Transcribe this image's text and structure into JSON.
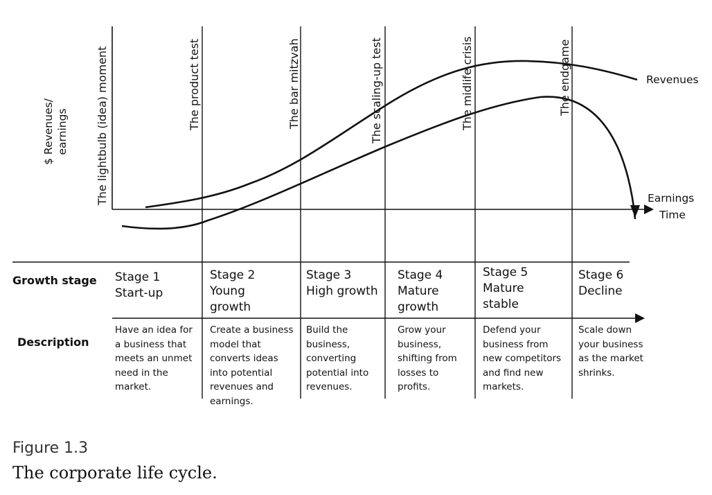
{
  "figure": {
    "number": "Figure 1.3",
    "title": "The corporate life cycle."
  },
  "chart": {
    "y_axis_label": "$ Revenues/\nearnings",
    "series_labels": {
      "revenues": "Revenues",
      "earnings": "Earnings",
      "time": "Time"
    },
    "milestones": [
      "The lightbulb (idea) moment",
      "The product test",
      "The bar mitzvah",
      "The scaling-up test",
      "The midlife crisis",
      "The endgame"
    ]
  },
  "table": {
    "row_headers": {
      "growth_stage": "Growth stage",
      "description": "Description"
    },
    "stages": [
      {
        "name": "Stage 1\nStart-up",
        "description": "Have an idea for\na business that\nmeets an unmet\nneed in the\nmarket."
      },
      {
        "name": "Stage 2\nYoung\ngrowth",
        "description": "Create a business\nmodel that\nconverts ideas\ninto potential\nrevenues and\nearnings."
      },
      {
        "name": "Stage 3\nHigh growth",
        "description": "Build the\nbusiness,\nconverting\npotential into\nrevenues."
      },
      {
        "name": "Stage 4\nMature\ngrowth",
        "description": "Grow your\nbusiness,\nshifting from\nlosses to\nprofits."
      },
      {
        "name": "Stage 5\nMature\nstable",
        "description": "Defend your\nbusiness from\nnew competitors\nand find new\nmarkets."
      },
      {
        "name": "Stage 6\nDecline",
        "description": "Scale down\nyour business\nas the market\nshrinks."
      }
    ]
  }
}
